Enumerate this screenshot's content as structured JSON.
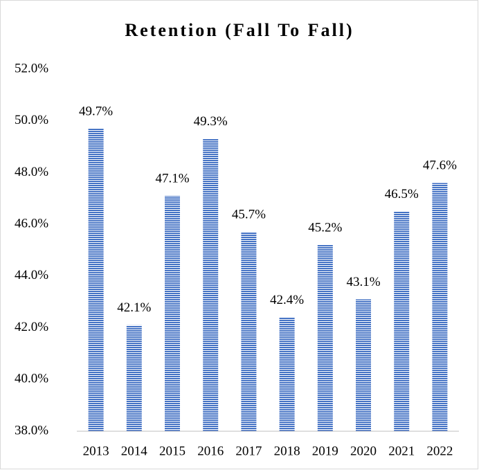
{
  "chart_data": {
    "type": "bar",
    "title": "Retention (Fall To Fall)",
    "categories": [
      "2013",
      "2014",
      "2015",
      "2016",
      "2017",
      "2018",
      "2019",
      "2020",
      "2021",
      "2022"
    ],
    "values": [
      49.7,
      42.1,
      47.1,
      49.3,
      45.7,
      42.4,
      45.2,
      43.1,
      46.5,
      47.6
    ],
    "value_labels": [
      "49.7%",
      "42.1%",
      "47.1%",
      "49.3%",
      "45.7%",
      "42.4%",
      "45.2%",
      "43.1%",
      "46.5%",
      "47.6%"
    ],
    "color": "#4472c4",
    "ylim": [
      38,
      52
    ],
    "yticks": [
      {
        "value": 38,
        "label": "38.0%"
      },
      {
        "value": 40,
        "label": "40.0%"
      },
      {
        "value": 42,
        "label": "42.0%"
      },
      {
        "value": 44,
        "label": "44.0%"
      },
      {
        "value": 46,
        "label": "46.0%"
      },
      {
        "value": 48,
        "label": "48.0%"
      },
      {
        "value": 50,
        "label": "50.0%"
      },
      {
        "value": 52,
        "label": "52.0%"
      }
    ],
    "grid": false
  }
}
